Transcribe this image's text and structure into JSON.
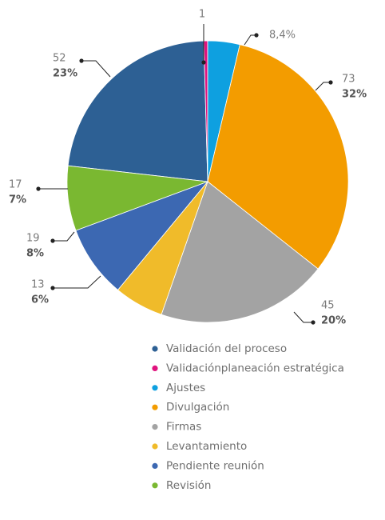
{
  "chart_data": {
    "type": "pie",
    "categories": [
      "Validación del proceso",
      "Validaciónplaneación estratégica",
      "Ajustes",
      "Divulgación",
      "Firmas",
      "Levantamiento",
      "Pendiente reunión",
      "Revisión"
    ],
    "values": [
      52,
      1,
      8.4,
      73,
      45,
      13,
      19,
      17
    ],
    "value_labels": [
      "52",
      "1",
      "8,4%",
      "73",
      "45",
      "13",
      "19",
      "17"
    ],
    "percents": [
      23,
      null,
      null,
      32,
      20,
      6,
      8,
      7
    ],
    "percent_labels": [
      "23%",
      null,
      null,
      "32%",
      "20%",
      "6%",
      "8%",
      "7%"
    ],
    "colors": [
      "#2d6094",
      "#e0137e",
      "#0ea0e0",
      "#f39c00",
      "#a3a3a3",
      "#f0bb2a",
      "#3c68b2",
      "#7ab831"
    ],
    "legend": "bottom"
  }
}
